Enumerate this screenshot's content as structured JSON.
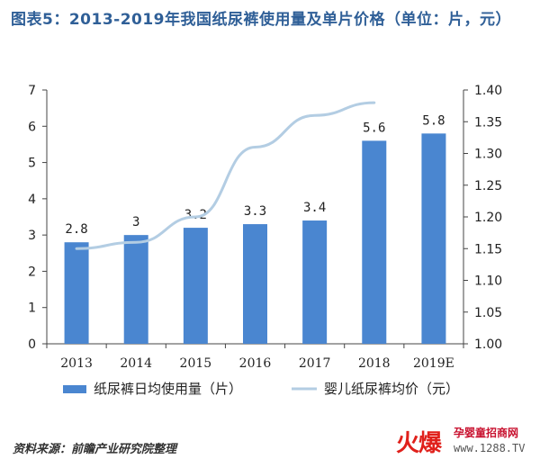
{
  "title": "图表5：2013-2019年我国纸尿裤使用量及单片价格（单位：片，元）",
  "source": "资料来源：前瞻产业研究院整理",
  "logo": {
    "mark": "火爆",
    "tagline": "孕婴童招商网",
    "url": "www.1288.TV"
  },
  "colors": {
    "bar": "#4a86d0",
    "line": "#b3cde3",
    "title": "#2f5f97",
    "logo": "#e0201b"
  },
  "chart_data": {
    "type": "bar",
    "categories": [
      "2013",
      "2014",
      "2015",
      "2016",
      "2017",
      "2018",
      "2019E"
    ],
    "series": [
      {
        "name": "纸尿裤日均使用量（片）",
        "type": "bar",
        "axis": "left",
        "values": [
          2.8,
          3,
          3.2,
          3.3,
          3.4,
          5.6,
          5.8
        ],
        "labels": [
          "2.8",
          "3",
          "3.2",
          "3.3",
          "3.4",
          "5.6",
          "5.8"
        ]
      },
      {
        "name": "婴儿纸尿裤均价（元）",
        "type": "line",
        "axis": "right",
        "values": [
          1.15,
          1.16,
          1.2,
          1.31,
          1.36,
          1.38,
          null
        ]
      }
    ],
    "y_left": {
      "min": 0,
      "max": 7,
      "ticks": [
        "0",
        "1",
        "2",
        "3",
        "4",
        "5",
        "6",
        "7"
      ]
    },
    "y_right": {
      "min": 1.0,
      "max": 1.4,
      "ticks": [
        "1.00",
        "1.05",
        "1.10",
        "1.15",
        "1.20",
        "1.25",
        "1.30",
        "1.35",
        "1.40"
      ]
    },
    "legend_position": "bottom",
    "grid": false
  }
}
